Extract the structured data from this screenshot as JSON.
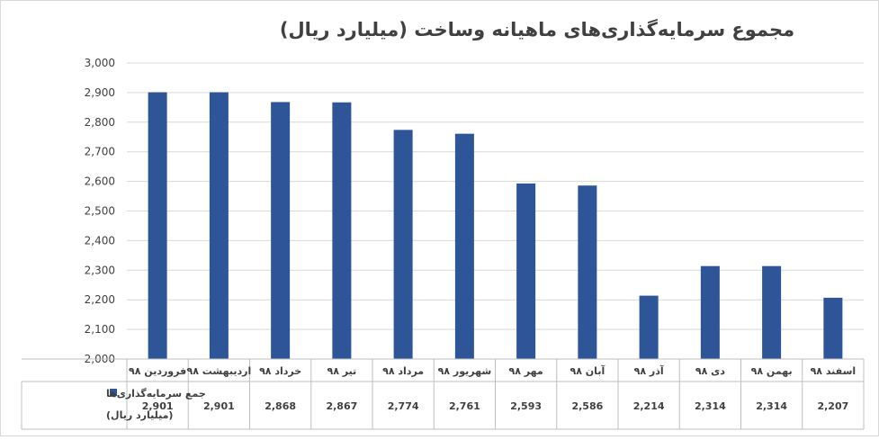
{
  "chart_data": {
    "type": "bar",
    "title": "مجموع سرمایه‌گذاری‌های ماهیانه وساخت (میلیارد ریال)",
    "categories": [
      "فروردین ۹۸",
      "اردیبهشت ۹۸",
      "خرداد ۹۸",
      "تیر ۹۸",
      "مرداد ۹۸",
      "شهریور ۹۸",
      "مهر ۹۸",
      "آبان ۹۸",
      "آذر ۹۸",
      "دی ۹۸",
      "بهمن ۹۸",
      "اسفند ۹۸"
    ],
    "series": [
      {
        "name_line1": "جمع سرمایه‌گذاری‌ها",
        "name_line2": "(میلیارد ریال)",
        "values": [
          2901,
          2901,
          2868,
          2867,
          2774,
          2761,
          2593,
          2586,
          2214,
          2314,
          2314,
          2207
        ],
        "value_labels": [
          "2,901",
          "2,901",
          "2,868",
          "2,867",
          "2,774",
          "2,761",
          "2,593",
          "2,586",
          "2,214",
          "2,314",
          "2,314",
          "2,207"
        ],
        "color": "#2E5597"
      }
    ],
    "ylim": [
      2000,
      3000
    ],
    "yticks": [
      2000,
      2100,
      2200,
      2300,
      2400,
      2500,
      2600,
      2700,
      2800,
      2900,
      3000
    ],
    "ytick_labels": [
      "2,000",
      "2,100",
      "2,200",
      "2,300",
      "2,400",
      "2,500",
      "2,600",
      "2,700",
      "2,800",
      "2,900",
      "3,000"
    ],
    "grid": true,
    "legend": "data-table-left"
  },
  "colors": {
    "grid": "#d9d9d9",
    "axis": "#bfbfbf",
    "text": "#404040"
  }
}
